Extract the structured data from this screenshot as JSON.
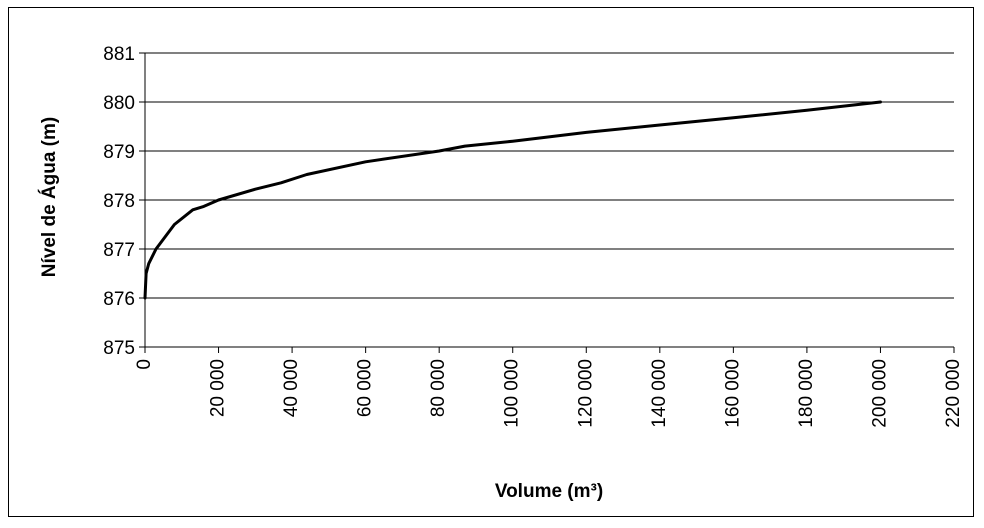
{
  "chart_data": {
    "type": "line",
    "title": "",
    "xlabel": "Volume (m³)",
    "ylabel": "Nível de Água (m)",
    "xlim": [
      0,
      220000
    ],
    "ylim": [
      875,
      881
    ],
    "x_ticks": [
      0,
      20000,
      40000,
      60000,
      80000,
      100000,
      120000,
      140000,
      160000,
      180000,
      200000,
      220000
    ],
    "x_tick_labels": [
      "0",
      "20 000",
      "40 000",
      "60 000",
      "80 000",
      "100 000",
      "120 000",
      "140 000",
      "160 000",
      "180 000",
      "200 000",
      "220 000"
    ],
    "y_ticks": [
      875,
      876,
      877,
      878,
      879,
      880,
      881
    ],
    "y_tick_labels": [
      "875",
      "876",
      "877",
      "878",
      "879",
      "880",
      "881"
    ],
    "grid": "horizontal",
    "legend": "none",
    "series": [
      {
        "color": "#000000",
        "x": [
          0,
          300,
          1000,
          3000,
          8000,
          13000,
          16000,
          20000,
          30000,
          37000,
          44000,
          60000,
          80000,
          87000,
          100000,
          120000,
          140000,
          160000,
          180000,
          200000
        ],
        "y": [
          876.0,
          876.5,
          876.7,
          877.0,
          877.5,
          877.8,
          877.87,
          878.0,
          878.22,
          878.35,
          878.52,
          878.78,
          879.0,
          879.1,
          879.2,
          879.38,
          879.53,
          879.68,
          879.83,
          880.0
        ]
      }
    ]
  }
}
